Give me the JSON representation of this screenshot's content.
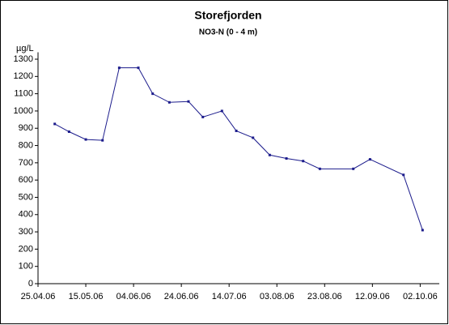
{
  "chart_data": {
    "type": "line",
    "title": "Storefjorden",
    "subtitle": "NO3-N (0 - 4 m)",
    "y_label": "µg/L",
    "x": [
      "02.05.06",
      "08.05.06",
      "15.05.06",
      "22.05.06",
      "29.05.06",
      "06.06.06",
      "12.06.06",
      "19.06.06",
      "27.06.06",
      "03.07.06",
      "11.07.06",
      "17.07.06",
      "24.07.06",
      "31.07.06",
      "07.08.06",
      "14.08.06",
      "21.08.06",
      "04.09.06",
      "11.09.06",
      "25.09.06",
      "03.10.06"
    ],
    "series": [
      {
        "name": "NO3-N",
        "color": "#1c1c8c",
        "values": [
          925,
          880,
          835,
          830,
          1250,
          1250,
          1100,
          1050,
          1055,
          965,
          1000,
          885,
          845,
          745,
          725,
          710,
          665,
          665,
          720,
          630,
          310
        ]
      }
    ],
    "xlim": [
      "25.04.06",
      "10.10.06"
    ],
    "xticks": [
      "25.04.06",
      "15.05.06",
      "04.06.06",
      "24.06.06",
      "14.07.06",
      "03.08.06",
      "23.08.06",
      "12.09.06",
      "02.10.06"
    ],
    "ylim": [
      0,
      1340
    ],
    "yticks": [
      0,
      100,
      200,
      300,
      400,
      500,
      600,
      700,
      800,
      900,
      1000,
      1100,
      1200,
      1300
    ]
  }
}
